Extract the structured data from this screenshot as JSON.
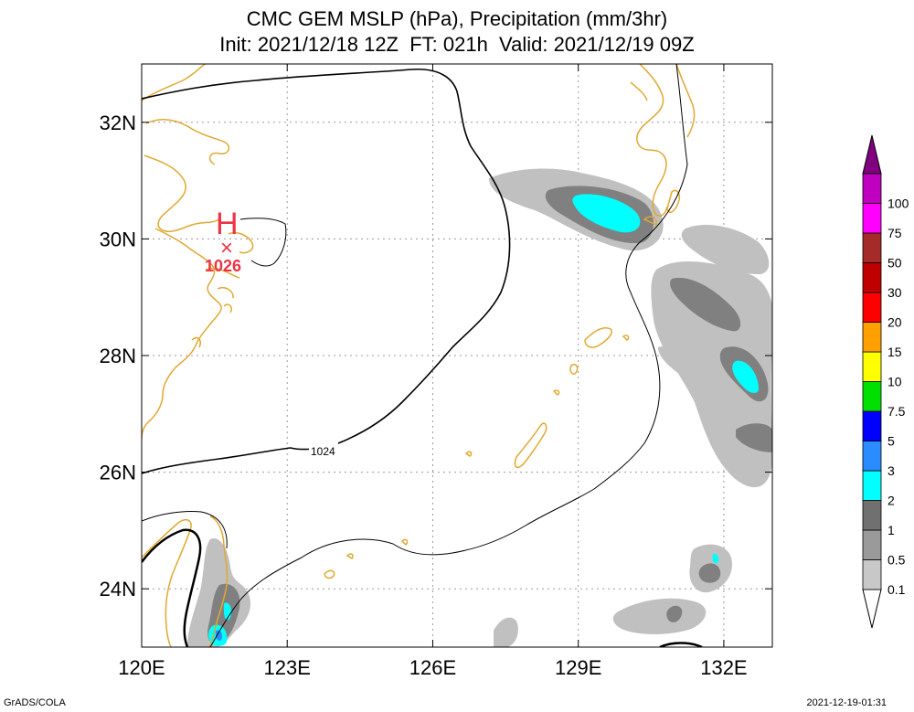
{
  "title": {
    "line1": "CMC GEM MSLP (hPa), Precipitation (mm/3hr)",
    "line2": "Init: 2021/12/18 12Z  FT: 021h  Valid: 2021/12/19 09Z"
  },
  "map": {
    "lon_range": [
      120,
      133
    ],
    "lat_range": [
      23,
      33
    ],
    "x_ticks": [
      {
        "lon": 120,
        "label": "120E"
      },
      {
        "lon": 123,
        "label": "123E"
      },
      {
        "lon": 126,
        "label": "126E"
      },
      {
        "lon": 129,
        "label": "129E"
      },
      {
        "lon": 132,
        "label": "132E"
      }
    ],
    "y_ticks": [
      {
        "lat": 24,
        "label": "24N"
      },
      {
        "lat": 26,
        "label": "26N"
      },
      {
        "lat": 28,
        "label": "28N"
      },
      {
        "lat": 30,
        "label": "30N"
      },
      {
        "lat": 32,
        "label": "32N"
      }
    ],
    "grid": true,
    "isobar_label": "1024",
    "high_center": {
      "symbol": "H",
      "marker": "×",
      "value": "1026",
      "lon": 121.8,
      "lat": 29.9
    },
    "colors": {
      "coast": "#e0a830",
      "isobar": "#000000",
      "high": "#ee3344",
      "precip_light": "#c0c0c0",
      "precip_mid": "#808080",
      "precip_1": "#00ffff",
      "precip_2": "#2a8cff"
    }
  },
  "colorbar": {
    "levels": [
      {
        "label": "0.1",
        "color": "#c8c8c8"
      },
      {
        "label": "0.5",
        "color": "#9a9a9a"
      },
      {
        "label": "1",
        "color": "#707070"
      },
      {
        "label": "2",
        "color": "#00ffff"
      },
      {
        "label": "3",
        "color": "#2a8cff"
      },
      {
        "label": "5",
        "color": "#0000ff"
      },
      {
        "label": "7.5",
        "color": "#00e000"
      },
      {
        "label": "10",
        "color": "#ffff00"
      },
      {
        "label": "15",
        "color": "#ffa000"
      },
      {
        "label": "20",
        "color": "#ff0000"
      },
      {
        "label": "30",
        "color": "#c00000"
      },
      {
        "label": "50",
        "color": "#a52a2a"
      },
      {
        "label": "75",
        "color": "#ff00ff"
      },
      {
        "label": "100",
        "color": "#c000c0"
      }
    ],
    "bottom_arrow_color": "#ffffff",
    "top_arrow_color": "#800080",
    "extra_top_color": "#9b30c8"
  },
  "footer": {
    "left": "GrADS/COLA",
    "right": "2021-12-19-01:31"
  }
}
